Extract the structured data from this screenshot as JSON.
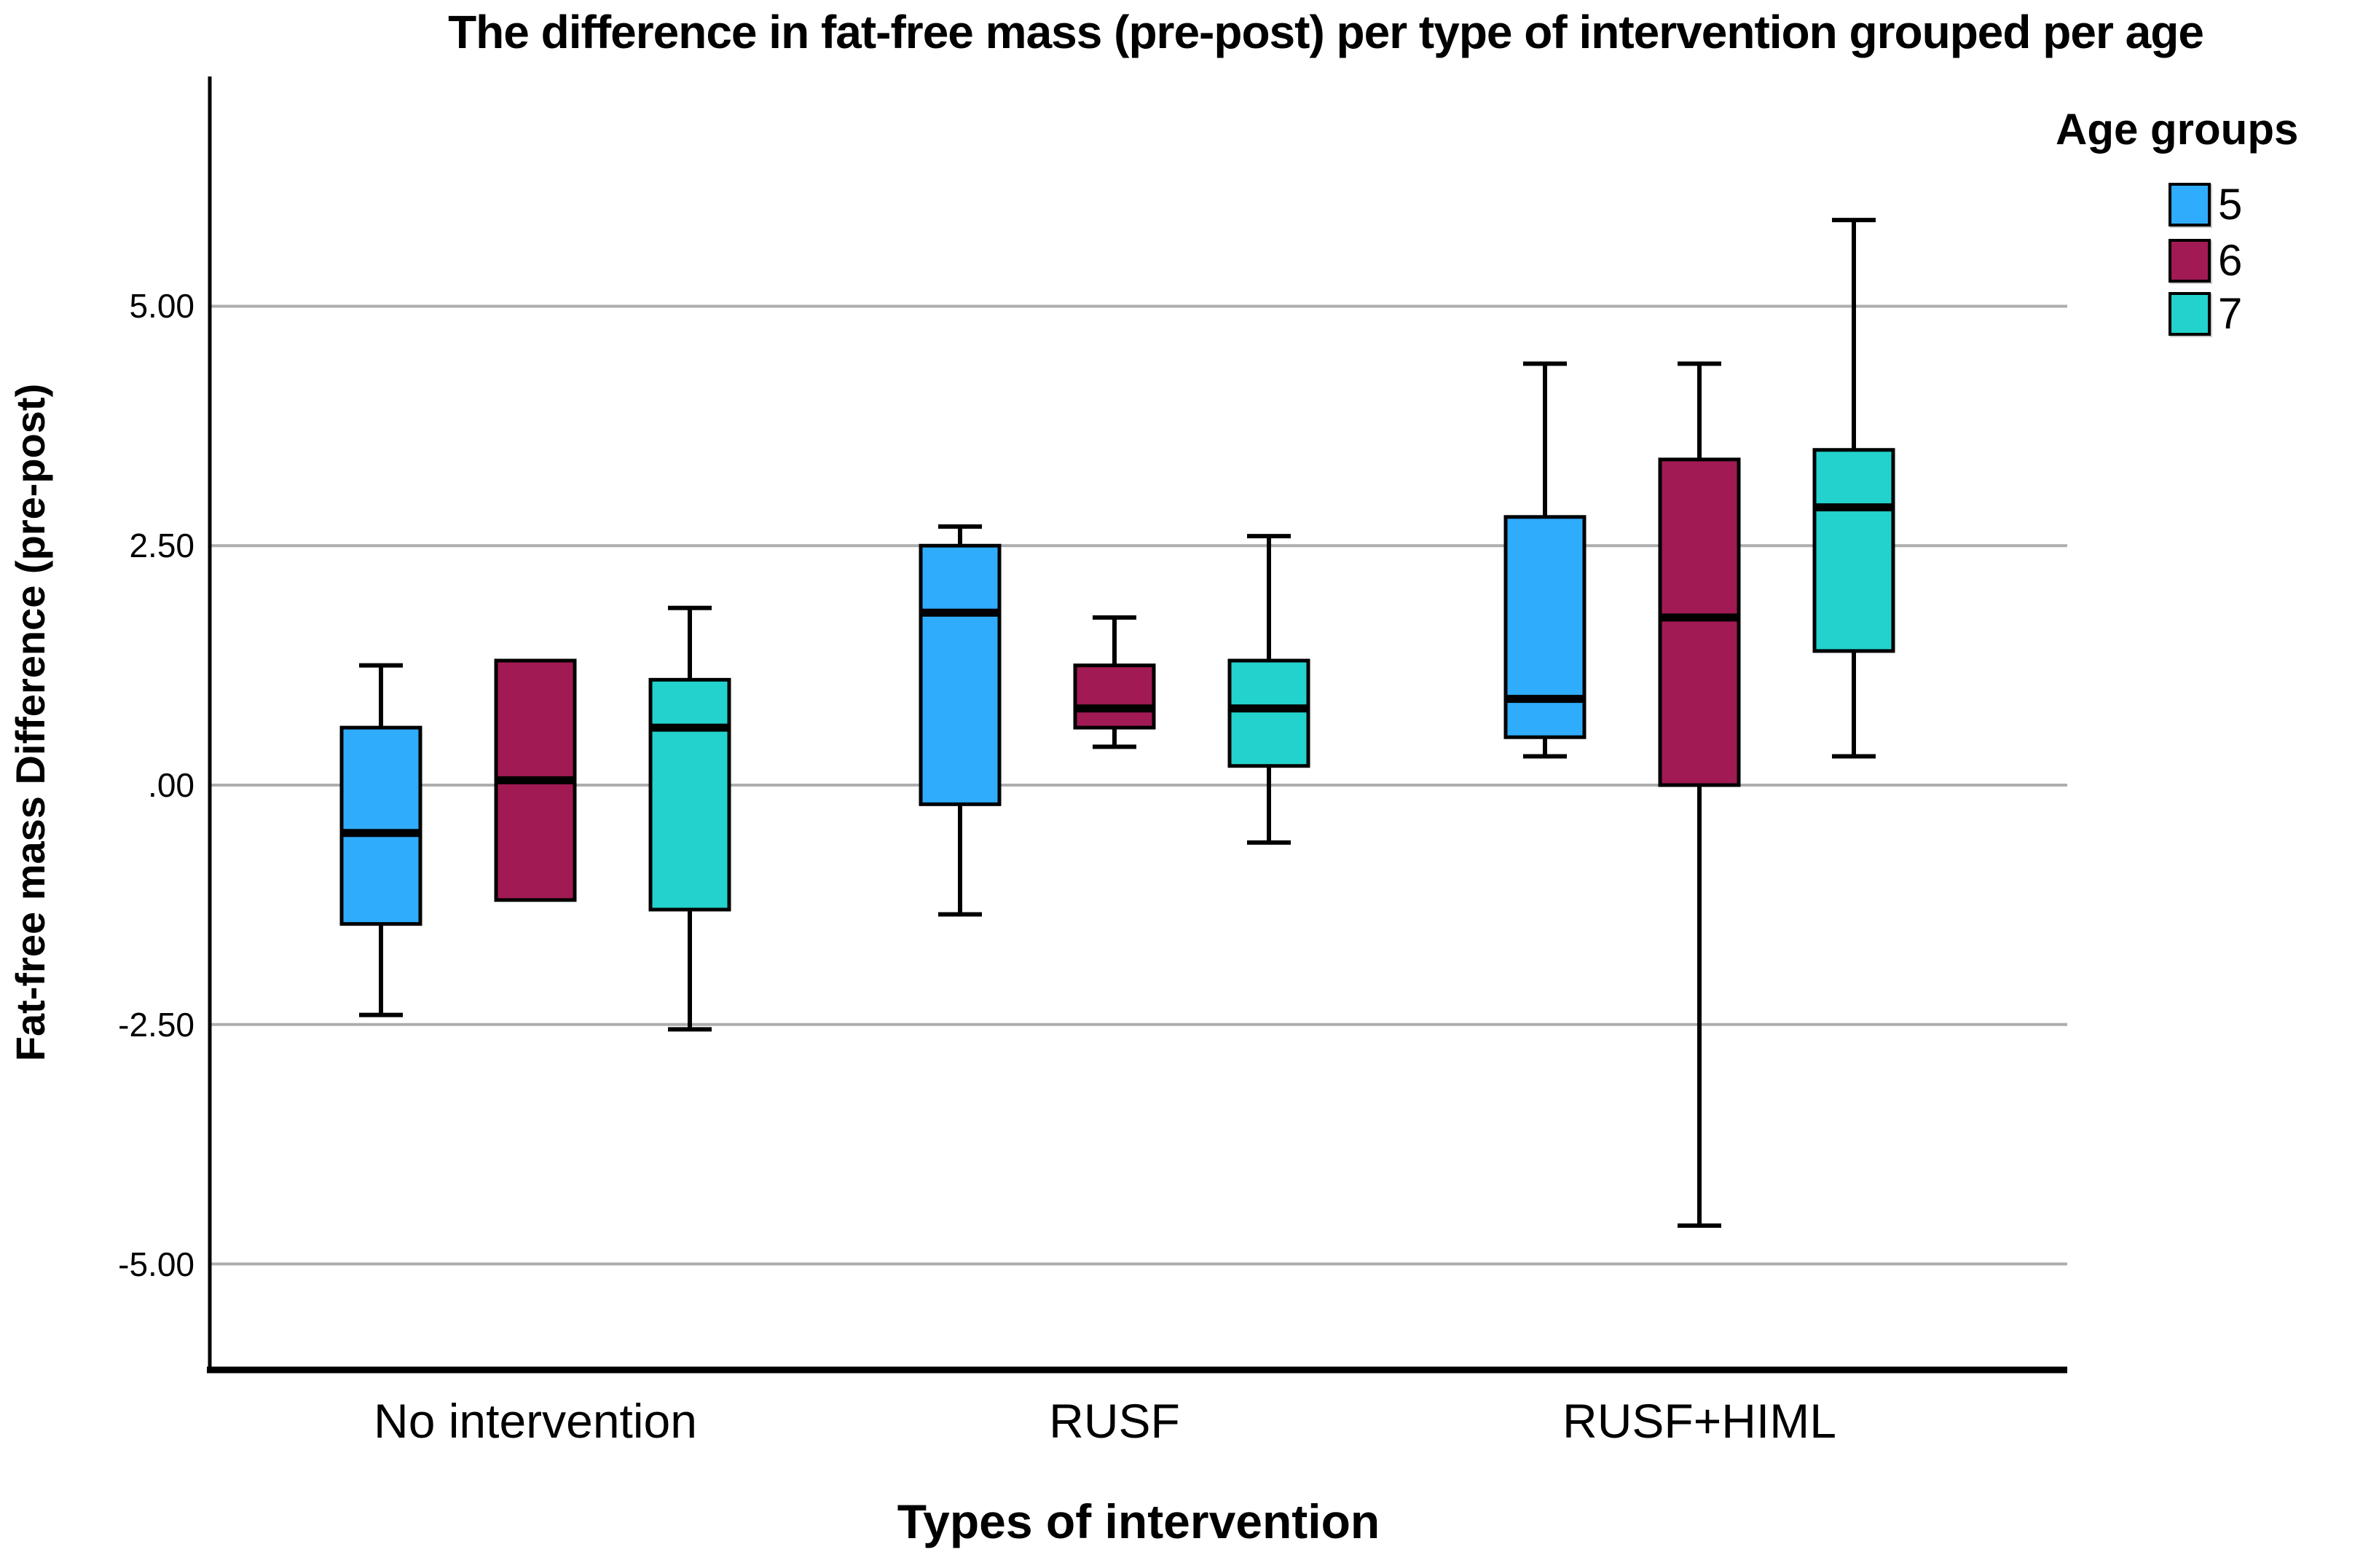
{
  "chart_data": {
    "type": "boxplot",
    "title": "The difference in fat-free mass (pre-post) per type of intervention grouped per age",
    "xlabel": "Types of intervention",
    "ylabel": "Fat-free mass Difference (pre-post)",
    "grid": "horizontal",
    "legend_position": "top-right",
    "ylim": [
      -6.1,
      7.4
    ],
    "yticks": [
      {
        "label": "5.00",
        "value": 5.0
      },
      {
        "label": "2.50",
        "value": 2.5
      },
      {
        "label": ".00",
        "value": 0.0
      },
      {
        "label": "-2.50",
        "value": -2.5
      },
      {
        "label": "-5.00",
        "value": -5.0
      }
    ],
    "categories": [
      "No intervention",
      "RUSF",
      "RUSF+HIML"
    ],
    "series": [
      {
        "name": "5",
        "color": "#2FACFC",
        "boxes": [
          {
            "category": "No intervention",
            "low": -2.4,
            "q1": -1.45,
            "median": -0.5,
            "q3": 0.6,
            "high": 1.25
          },
          {
            "category": "RUSF",
            "low": -1.35,
            "q1": -0.2,
            "median": 1.8,
            "q3": 2.5,
            "high": 2.7
          },
          {
            "category": "RUSF+HIML",
            "low": 0.3,
            "q1": 0.5,
            "median": 0.9,
            "q3": 2.8,
            "high": 4.4
          }
        ]
      },
      {
        "name": "6",
        "color": "#A11A53",
        "boxes": [
          {
            "category": "No intervention",
            "low": -1.2,
            "q1": -1.2,
            "median": 0.05,
            "q3": 1.3,
            "high": 1.3
          },
          {
            "category": "RUSF",
            "low": 0.4,
            "q1": 0.6,
            "median": 0.8,
            "q3": 1.25,
            "high": 1.75
          },
          {
            "category": "RUSF+HIML",
            "low": -4.6,
            "q1": 0.0,
            "median": 1.75,
            "q3": 3.4,
            "high": 4.4
          }
        ]
      },
      {
        "name": "7",
        "color": "#23D2CC",
        "boxes": [
          {
            "category": "No intervention",
            "low": -2.55,
            "q1": -1.3,
            "median": 0.6,
            "q3": 1.1,
            "high": 1.85
          },
          {
            "category": "RUSF",
            "low": -0.6,
            "q1": 0.2,
            "median": 0.8,
            "q3": 1.3,
            "high": 2.6
          },
          {
            "category": "RUSF+HIML",
            "low": 0.3,
            "q1": 1.4,
            "median": 2.9,
            "q3": 3.5,
            "high": 5.9
          }
        ]
      }
    ],
    "legend": {
      "title": "Age groups"
    },
    "style_colors": {
      "gridline": "#ADADAD",
      "axis": "#000000",
      "box_border": "#000000"
    }
  }
}
